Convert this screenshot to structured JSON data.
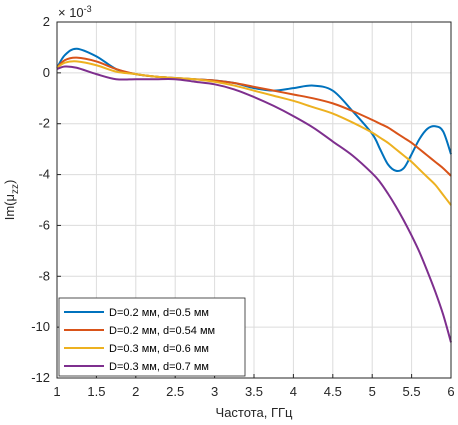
{
  "chart_data": {
    "type": "line",
    "title": "",
    "xlabel": "Частота, ГГц",
    "ylabel_main": "Im(μ",
    "ylabel_sub": "zz",
    "ylabel_tail": ")",
    "y_multiplier": "× 10",
    "y_multiplier_exp": "-3",
    "xlim": [
      1,
      6
    ],
    "ylim": [
      -12,
      2
    ],
    "x_ticks": [
      1,
      1.5,
      2,
      2.5,
      3,
      3.5,
      4,
      4.5,
      5,
      5.5,
      6
    ],
    "y_ticks": [
      2,
      0,
      -2,
      -4,
      -6,
      -8,
      -10,
      -12
    ],
    "x_tick_labels": [
      "1",
      "1.5",
      "2",
      "2.5",
      "3",
      "3.5",
      "4",
      "4.5",
      "5",
      "5.5",
      "6"
    ],
    "y_tick_labels": [
      "2",
      "0",
      "-2",
      "-4",
      "-6",
      "-8",
      "-10",
      "-12"
    ],
    "grid": true,
    "legend_position": "bottom-left",
    "x": [
      1,
      1.1,
      1.25,
      1.5,
      1.75,
      2,
      2.25,
      2.5,
      2.75,
      3,
      3.25,
      3.5,
      3.75,
      4,
      4.25,
      4.5,
      4.75,
      5,
      5.1,
      5.2,
      5.3,
      5.4,
      5.5,
      5.6,
      5.7,
      5.8,
      5.9,
      6
    ],
    "series": [
      {
        "name": "D=0.2 мм, d=0.5 мм",
        "color": "#0072BD",
        "values": [
          0.2,
          0.7,
          0.95,
          0.65,
          0.15,
          -0.05,
          -0.15,
          -0.2,
          -0.25,
          -0.3,
          -0.4,
          -0.6,
          -0.7,
          -0.6,
          -0.5,
          -0.7,
          -1.5,
          -2.4,
          -3.0,
          -3.6,
          -3.85,
          -3.75,
          -3.2,
          -2.6,
          -2.2,
          -2.1,
          -2.3,
          -3.2
        ]
      },
      {
        "name": "D=0.2 мм, d=0.54 мм",
        "color": "#D95319",
        "values": [
          0.2,
          0.5,
          0.6,
          0.45,
          0.15,
          -0.05,
          -0.15,
          -0.2,
          -0.25,
          -0.3,
          -0.4,
          -0.55,
          -0.7,
          -0.85,
          -1.0,
          -1.2,
          -1.5,
          -1.85,
          -2.0,
          -2.15,
          -2.35,
          -2.55,
          -2.75,
          -3.0,
          -3.25,
          -3.5,
          -3.75,
          -4.05
        ]
      },
      {
        "name": "D=0.3 мм, d=0.6 мм",
        "color": "#EDB120",
        "values": [
          0.2,
          0.4,
          0.45,
          0.3,
          0.05,
          -0.05,
          -0.15,
          -0.2,
          -0.25,
          -0.35,
          -0.5,
          -0.7,
          -0.9,
          -1.1,
          -1.35,
          -1.6,
          -1.95,
          -2.35,
          -2.55,
          -2.75,
          -3.0,
          -3.25,
          -3.5,
          -3.8,
          -4.1,
          -4.4,
          -4.8,
          -5.2
        ]
      },
      {
        "name": "D=0.3 мм, d=0.7 мм",
        "color": "#7E2F8E",
        "values": [
          0.15,
          0.25,
          0.2,
          -0.05,
          -0.25,
          -0.25,
          -0.25,
          -0.25,
          -0.35,
          -0.45,
          -0.65,
          -0.95,
          -1.3,
          -1.7,
          -2.15,
          -2.7,
          -3.25,
          -3.95,
          -4.3,
          -4.75,
          -5.25,
          -5.8,
          -6.4,
          -7.05,
          -7.8,
          -8.6,
          -9.5,
          -10.6
        ]
      }
    ]
  }
}
